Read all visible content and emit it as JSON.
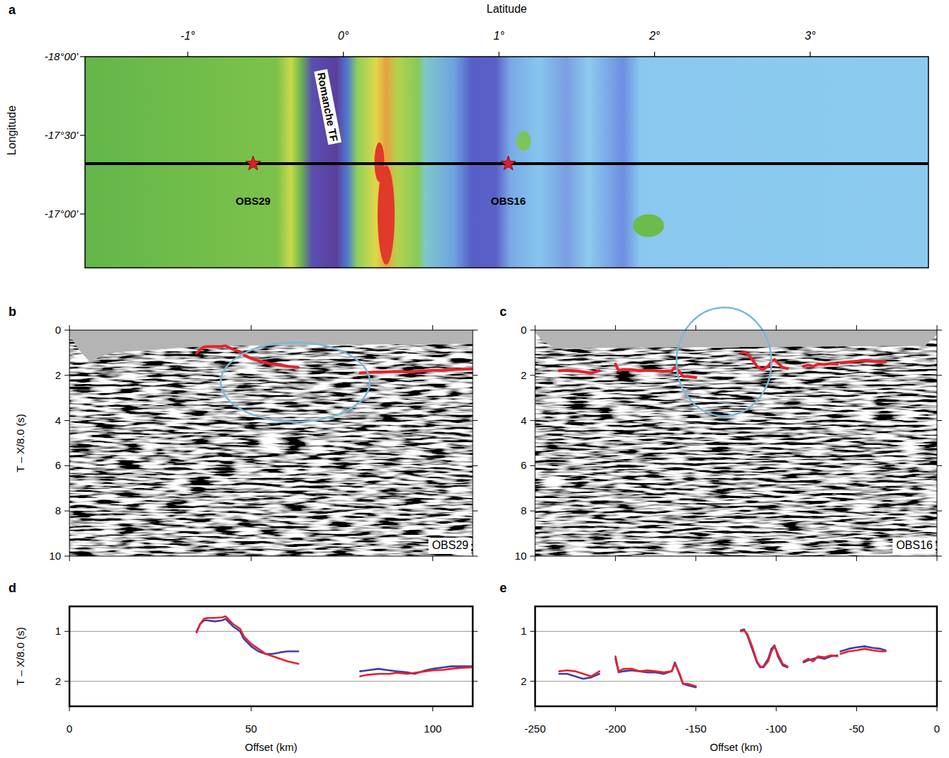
{
  "chart_data": [
    {
      "panel": "a",
      "type": "map",
      "x_label": "Latitude",
      "y_label": "Longitude",
      "xlim": [
        -1.66,
        3.76
      ],
      "ylim": [
        -18.0,
        -16.658
      ],
      "xticks": [
        {
          "value": -1,
          "label": "-1°"
        },
        {
          "value": 0,
          "label": "0°"
        },
        {
          "value": 1,
          "label": "1°"
        },
        {
          "value": 2,
          "label": "2°"
        },
        {
          "value": 3,
          "label": "3°"
        }
      ],
      "yticks": [
        {
          "value": -18,
          "label": "-18°00'"
        },
        {
          "value": -17.5,
          "label": "-17°30'"
        },
        {
          "value": -17,
          "label": "-17°00'"
        }
      ],
      "track": {
        "x": [
          -1.66,
          3.76
        ],
        "y": [
          -17.32,
          -17.32
        ]
      },
      "color": "#000000",
      "stations": [
        {
          "name": "OBS29",
          "x": -0.58,
          "y": -17.32
        },
        {
          "name": "OBS16",
          "x": 1.06,
          "y": -17.32
        }
      ],
      "annotations": [
        {
          "text": "Romanche TF",
          "x": -0.1,
          "y": -17.68
        }
      ]
    },
    {
      "panel": "b",
      "type": "line",
      "station": "OBS29",
      "y_label": "T – X/8.0 (s)",
      "xlim": [
        0,
        111
      ],
      "ylim": [
        0,
        10
      ],
      "xticks": [
        0,
        50,
        100
      ],
      "yticks": [
        0,
        2,
        4,
        6,
        8,
        10
      ],
      "tick_labels": "y",
      "x": [
        35,
        36,
        37,
        38,
        40,
        42,
        43,
        45,
        47,
        48,
        50,
        52,
        54,
        56,
        58,
        60,
        63,
        70,
        80,
        82,
        85,
        88,
        90,
        93,
        95,
        98,
        100,
        103,
        105,
        108,
        111
      ],
      "series": [
        {
          "color": "#e8212a",
          "values": [
            1.02,
            0.85,
            0.75,
            0.73,
            0.73,
            0.72,
            0.7,
            0.85,
            0.95,
            1.1,
            1.25,
            1.35,
            1.45,
            1.5,
            1.55,
            1.6,
            1.65,
            null,
            1.9,
            1.87,
            1.85,
            1.85,
            1.83,
            1.85,
            1.83,
            1.8,
            1.78,
            1.77,
            1.75,
            1.73,
            1.72
          ]
        }
      ]
    },
    {
      "panel": "c",
      "type": "line",
      "station": "OBS16",
      "xlim": [
        -250,
        0
      ],
      "ylim": [
        0,
        10
      ],
      "xticks": [
        -250,
        -200,
        -150,
        -100,
        -50,
        0
      ],
      "yticks": [
        0,
        2,
        4,
        6,
        8,
        10
      ],
      "tick_labels": "y",
      "x": [
        -235,
        -230,
        -225,
        -220,
        -215,
        -210,
        -205,
        -200,
        -198,
        -195,
        -190,
        -185,
        -180,
        -175,
        -170,
        -165,
        -163,
        -160,
        -158,
        -155,
        -150,
        -135,
        -122,
        -120,
        -118,
        -115,
        -112,
        -110,
        -108,
        -105,
        -103,
        -101,
        -99,
        -96,
        -93,
        -88,
        -83,
        -80,
        -77,
        -74,
        -70,
        -66,
        -62,
        -61,
        -60,
        -55,
        -50,
        -45,
        -40,
        -35,
        -32
      ],
      "series": [
        {
          "color": "#e8212a",
          "values": [
            1.8,
            1.78,
            1.8,
            1.85,
            1.9,
            1.8,
            null,
            1.5,
            1.8,
            1.75,
            1.75,
            1.8,
            1.78,
            1.8,
            1.82,
            1.8,
            1.65,
            1.85,
            2.05,
            2.05,
            2.1,
            null,
            1.0,
            0.98,
            1.05,
            1.3,
            1.6,
            1.7,
            1.72,
            1.6,
            1.4,
            1.3,
            1.45,
            1.65,
            1.7,
            null,
            1.6,
            1.55,
            1.6,
            1.5,
            1.52,
            1.48,
            1.5,
            null,
            1.45,
            1.4,
            1.38,
            1.35,
            1.38,
            1.4,
            1.4
          ]
        }
      ]
    },
    {
      "panel": "d",
      "type": "line",
      "y_label": "T – X/8.0 (s)",
      "x_label": "Offset (km)",
      "xlim": [
        0,
        111
      ],
      "ylim": [
        0.5,
        2.5
      ],
      "xticks": [
        0,
        50,
        100
      ],
      "yticks": [
        1,
        2
      ],
      "grid": true,
      "tick_labels": true,
      "x": [
        35,
        36,
        37,
        38,
        40,
        42,
        43,
        45,
        47,
        48,
        50,
        52,
        54,
        56,
        58,
        60,
        63,
        70,
        80,
        82,
        85,
        88,
        90,
        93,
        95,
        98,
        100,
        103,
        105,
        108,
        111
      ],
      "series": [
        {
          "color": "#3f3fa8",
          "values": [
            1.0,
            0.85,
            0.78,
            0.78,
            0.8,
            0.78,
            0.75,
            0.9,
            1.0,
            1.15,
            1.3,
            1.4,
            1.45,
            1.45,
            1.42,
            1.4,
            1.4,
            null,
            1.8,
            1.78,
            1.75,
            1.78,
            1.8,
            1.82,
            1.85,
            1.78,
            1.75,
            1.72,
            1.7,
            1.7,
            1.7
          ]
        },
        {
          "color": "#e8212a",
          "values": [
            1.02,
            0.85,
            0.75,
            0.73,
            0.73,
            0.72,
            0.7,
            0.85,
            0.95,
            1.1,
            1.25,
            1.35,
            1.45,
            1.5,
            1.55,
            1.6,
            1.65,
            null,
            1.9,
            1.87,
            1.85,
            1.85,
            1.83,
            1.85,
            1.83,
            1.8,
            1.78,
            1.77,
            1.75,
            1.73,
            1.72
          ]
        }
      ]
    },
    {
      "panel": "e",
      "type": "line",
      "x_label": "Offset (km)",
      "xlim": [
        -250,
        0
      ],
      "ylim": [
        0.5,
        2.5
      ],
      "xticks": [
        -250,
        -200,
        -150,
        -100,
        -50,
        0
      ],
      "yticks": [
        1,
        2
      ],
      "grid": true,
      "tick_labels": true,
      "x": [
        -235,
        -230,
        -225,
        -220,
        -215,
        -210,
        -205,
        -200,
        -198,
        -195,
        -190,
        -185,
        -180,
        -175,
        -170,
        -165,
        -163,
        -160,
        -158,
        -155,
        -150,
        -135,
        -122,
        -120,
        -118,
        -115,
        -112,
        -110,
        -108,
        -105,
        -103,
        -101,
        -99,
        -96,
        -93,
        -88,
        -83,
        -80,
        -77,
        -74,
        -70,
        -66,
        -62,
        -61,
        -60,
        -55,
        -50,
        -45,
        -40,
        -35,
        -32
      ],
      "series": [
        {
          "color": "#3f3fa8",
          "values": [
            1.85,
            1.85,
            1.9,
            1.95,
            1.92,
            1.85,
            null,
            1.55,
            1.82,
            1.8,
            1.78,
            1.8,
            1.82,
            1.82,
            1.85,
            1.8,
            1.62,
            1.88,
            2.05,
            2.08,
            2.12,
            null,
            0.98,
            0.96,
            1.08,
            1.35,
            1.62,
            1.72,
            1.7,
            1.55,
            1.35,
            1.28,
            1.5,
            1.68,
            1.72,
            null,
            1.62,
            1.58,
            1.55,
            1.52,
            1.55,
            1.5,
            1.48,
            null,
            1.4,
            1.35,
            1.32,
            1.3,
            1.33,
            1.35,
            1.38
          ]
        },
        {
          "color": "#e8212a",
          "values": [
            1.8,
            1.78,
            1.8,
            1.85,
            1.9,
            1.8,
            null,
            1.5,
            1.8,
            1.75,
            1.75,
            1.8,
            1.78,
            1.8,
            1.82,
            1.8,
            1.65,
            1.85,
            2.05,
            2.05,
            2.1,
            null,
            1.0,
            0.98,
            1.05,
            1.3,
            1.6,
            1.7,
            1.72,
            1.6,
            1.4,
            1.3,
            1.45,
            1.65,
            1.7,
            null,
            1.6,
            1.55,
            1.6,
            1.5,
            1.52,
            1.48,
            1.5,
            null,
            1.45,
            1.4,
            1.38,
            1.35,
            1.38,
            1.4,
            1.4
          ]
        }
      ]
    }
  ]
}
